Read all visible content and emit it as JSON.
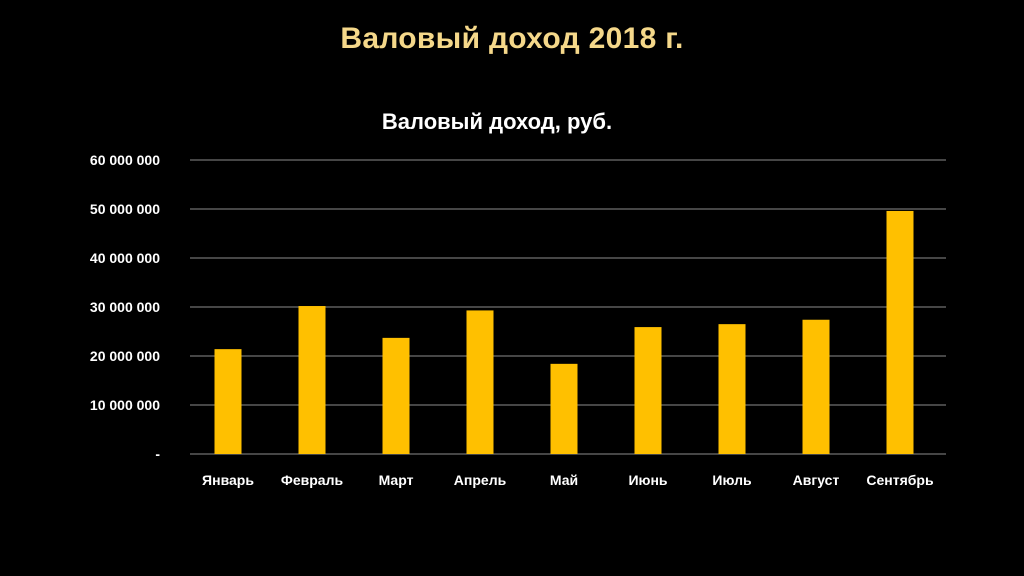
{
  "slide": {
    "title": "Валовый доход  2018 г."
  },
  "colors": {
    "background": "#000000",
    "bar": "#FFC000",
    "title": "#F5D88A",
    "gridline": "#8c8c8c",
    "text": "#ffffff"
  },
  "chart_data": {
    "type": "bar",
    "title": "Валовый доход, руб.",
    "xlabel": "",
    "ylabel": "",
    "ylim": [
      0,
      60000000
    ],
    "grid": true,
    "legend": "none",
    "y_ticks": [
      {
        "value": 0,
        "label": "-"
      },
      {
        "value": 10000000,
        "label": "10 000 000"
      },
      {
        "value": 20000000,
        "label": "20 000 000"
      },
      {
        "value": 30000000,
        "label": "30 000 000"
      },
      {
        "value": 40000000,
        "label": "40 000 000"
      },
      {
        "value": 50000000,
        "label": "50 000 000"
      },
      {
        "value": 60000000,
        "label": "60 000 000"
      }
    ],
    "categories": [
      "Январь",
      "Февраль",
      "Март",
      "Апрель",
      "Май",
      "Июнь",
      "Июль",
      "Август",
      "Сентябрь"
    ],
    "values": [
      21400000,
      30200000,
      23700000,
      29300000,
      18400000,
      25900000,
      26500000,
      27400000,
      49600000
    ]
  }
}
